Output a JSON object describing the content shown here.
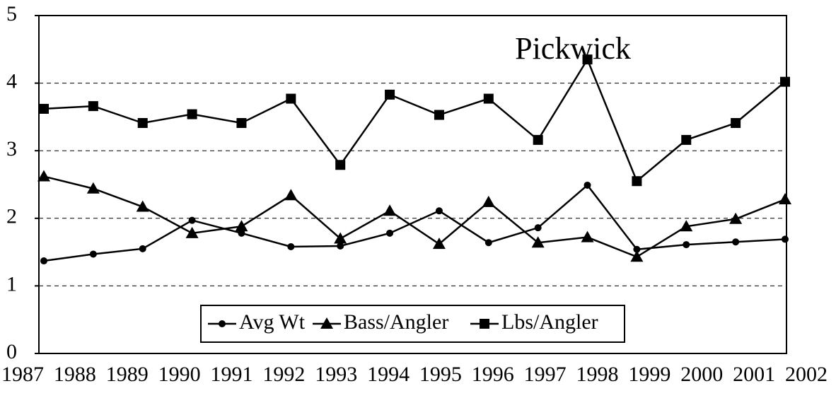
{
  "chart_data": {
    "type": "line",
    "title": "Pickwick",
    "categories": [
      "1987",
      "1988",
      "1989",
      "1990",
      "1991",
      "1992",
      "1993",
      "1994",
      "1995",
      "1996",
      "1997",
      "1998",
      "1999",
      "2000",
      "2001",
      "2002"
    ],
    "series": [
      {
        "name": "Avg Wt",
        "color": "#000000",
        "marker": "circle",
        "values": [
          1.37,
          1.47,
          1.55,
          1.97,
          1.78,
          1.58,
          1.59,
          1.78,
          2.11,
          1.64,
          1.86,
          2.49,
          1.54,
          1.61,
          1.65,
          1.69
        ]
      },
      {
        "name": "Bass/Angler",
        "color": "#000000",
        "marker": "triangle",
        "values": [
          2.62,
          2.44,
          2.17,
          1.78,
          1.88,
          2.34,
          1.7,
          2.11,
          1.62,
          2.24,
          1.64,
          1.72,
          1.43,
          1.88,
          1.99,
          2.28
        ]
      },
      {
        "name": "Lbs/Angler",
        "color": "#000000",
        "marker": "square",
        "values": [
          3.62,
          3.66,
          3.41,
          3.54,
          3.41,
          3.77,
          2.79,
          3.83,
          3.53,
          3.77,
          3.16,
          4.35,
          2.55,
          3.16,
          3.41,
          4.02
        ]
      }
    ],
    "ylim": [
      0,
      5
    ],
    "yticks": [
      0,
      1,
      2,
      3,
      4,
      5
    ],
    "grid": true,
    "legend": "lower center"
  }
}
